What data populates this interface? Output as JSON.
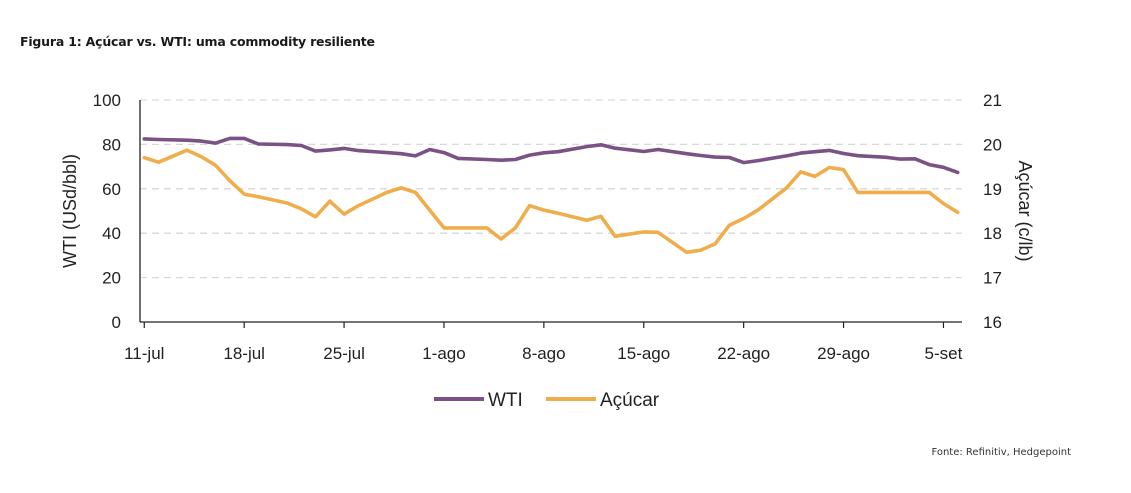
{
  "figure": {
    "title": "Figura 1: Açúcar vs. WTI: uma commodity resiliente",
    "source": "Fonte: Refinitiv, Hedgepoint"
  },
  "colors": {
    "wti": "#7b5286",
    "acucar": "#efad4b",
    "grid": "#d9d9d9",
    "axis": "#222222"
  },
  "chart_data": {
    "type": "line",
    "y_left": {
      "label": "WTI (USd/bbl)",
      "min": 0,
      "max": 100,
      "ticks": [
        0,
        20,
        40,
        60,
        80,
        100
      ]
    },
    "y_right": {
      "label": "Açúcar (c/lb)",
      "min": 16,
      "max": 21,
      "ticks": [
        16,
        17,
        18,
        19,
        20,
        21
      ]
    },
    "x_range": [
      -0.3,
      57.3
    ],
    "x_ticks": [
      {
        "x": 0,
        "label": "11-jul"
      },
      {
        "x": 7,
        "label": "18-jul"
      },
      {
        "x": 14,
        "label": "25-jul"
      },
      {
        "x": 21,
        "label": "1-ago"
      },
      {
        "x": 28,
        "label": "8-ago"
      },
      {
        "x": 35,
        "label": "15-ago"
      },
      {
        "x": 42,
        "label": "22-ago"
      },
      {
        "x": 49,
        "label": "29-ago"
      },
      {
        "x": 56,
        "label": "5-set"
      }
    ],
    "grid": true,
    "legend": "bottom-center",
    "series": [
      {
        "name": "WTI",
        "axis": "left",
        "x": [
          0,
          1,
          3,
          4,
          5,
          6,
          7,
          8,
          10,
          11,
          12,
          13,
          14,
          15,
          17,
          18,
          19,
          20,
          21,
          22,
          24,
          25,
          26,
          27,
          28,
          29,
          31,
          32,
          33,
          35,
          36,
          38,
          39,
          40,
          41,
          42,
          43,
          45,
          46,
          47,
          48,
          49,
          50,
          52,
          53,
          54,
          55,
          56,
          57
        ],
        "values": [
          82.5,
          82.2,
          81.9,
          81.5,
          80.6,
          82.7,
          82.7,
          80.2,
          79.9,
          79.5,
          77,
          77.5,
          78.2,
          77.2,
          76.3,
          75.8,
          74.8,
          77.7,
          76.3,
          73.7,
          73.2,
          72.9,
          73.2,
          75.2,
          76.2,
          76.7,
          79,
          79.8,
          78.3,
          76.8,
          77.7,
          75.8,
          75,
          74.3,
          74.1,
          71.8,
          72.7,
          74.8,
          76.1,
          76.7,
          77.3,
          75.9,
          74.9,
          74.2,
          73.4,
          73.5,
          70.9,
          69.7,
          67.4
        ]
      },
      {
        "name": "Açúcar",
        "axis": "right",
        "x": [
          0,
          1,
          3,
          4,
          5,
          6,
          7,
          8,
          10,
          11,
          12,
          13,
          14,
          15,
          17,
          18,
          19,
          20,
          21,
          22,
          24,
          25,
          26,
          27,
          28,
          29,
          31,
          32,
          33,
          35,
          36,
          38,
          39,
          40,
          41,
          42,
          43,
          45,
          46,
          47,
          48,
          49,
          50,
          52,
          53,
          54,
          55,
          56,
          57
        ],
        "values": [
          19.7,
          19.6,
          19.87,
          19.72,
          19.53,
          19.18,
          18.88,
          18.82,
          18.68,
          18.55,
          18.37,
          18.72,
          18.43,
          18.62,
          18.92,
          19.02,
          18.92,
          18.52,
          18.12,
          18.12,
          18.12,
          17.87,
          18.12,
          18.62,
          18.52,
          18.45,
          18.29,
          18.38,
          17.93,
          18.03,
          18.02,
          17.57,
          17.62,
          17.76,
          18.18,
          18.33,
          18.52,
          19.02,
          19.38,
          19.28,
          19.48,
          19.43,
          18.92,
          18.92,
          18.92,
          18.92,
          18.92,
          18.67,
          18.47
        ]
      }
    ]
  }
}
